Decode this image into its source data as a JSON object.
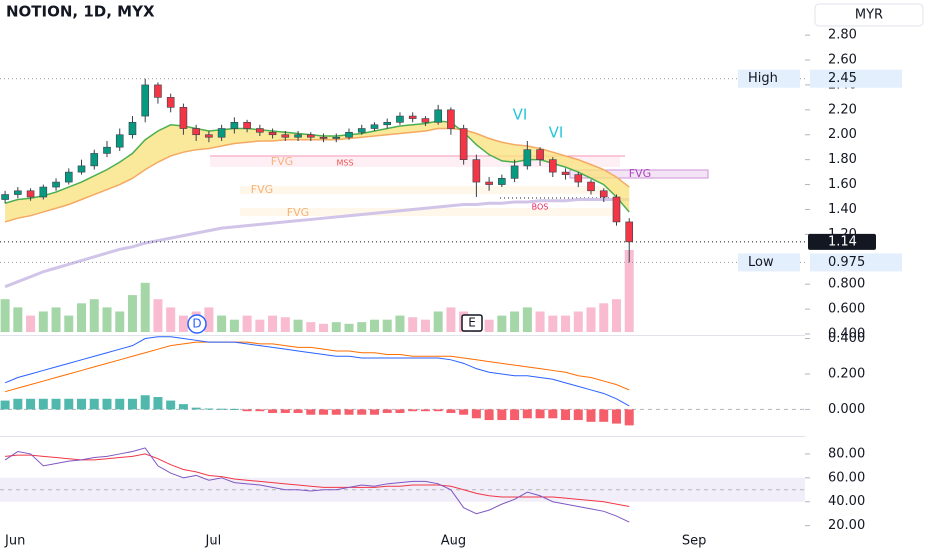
{
  "chart_data": [
    {
      "type": "candlestick",
      "title": "NOTION, 1D, MYX",
      "currency": "MYR",
      "xlim": [
        -0.4,
        62.8
      ],
      "ylim": [
        0.392,
        3.082
      ],
      "yticks": [
        {
          "value": 2.8,
          "label": "2.80"
        },
        {
          "value": 2.6,
          "label": "2.60"
        },
        {
          "value": 2.4,
          "label": "2.40"
        },
        {
          "value": 2.2,
          "label": "2.20"
        },
        {
          "value": 2,
          "label": "2.00"
        },
        {
          "value": 1.8,
          "label": "1.80"
        },
        {
          "value": 1.6,
          "label": "1.60"
        },
        {
          "value": 1.4,
          "label": "1.40"
        },
        {
          "value": 1.2,
          "label": "1.20"
        },
        {
          "value": 0.8,
          "label": "0.800"
        },
        {
          "value": 0.6,
          "label": "0.600"
        },
        {
          "value": 0.4,
          "label": "0.400"
        }
      ],
      "up_color": "#089981",
      "down_color": "#f23645",
      "open": [
        1.48,
        1.52,
        1.55,
        1.5,
        1.58,
        1.62,
        1.7,
        1.75,
        1.85,
        1.9,
        2.0,
        2.15,
        2.4,
        2.3,
        2.22,
        2.05,
        2.0,
        1.98,
        2.05,
        2.1,
        2.05,
        2.02,
        2.0,
        1.98,
        2.0,
        1.98,
        1.97,
        1.98,
        2.02,
        2.05,
        2.08,
        2.1,
        2.15,
        2.13,
        2.1,
        2.2,
        2.05,
        1.8,
        1.62,
        1.6,
        1.65,
        1.75,
        1.88,
        1.8,
        1.7,
        1.68,
        1.62,
        1.55,
        1.5,
        1.3
      ],
      "high": [
        1.55,
        1.58,
        1.57,
        1.6,
        1.65,
        1.73,
        1.8,
        1.88,
        1.95,
        2.05,
        2.15,
        2.45,
        2.42,
        2.33,
        2.25,
        2.08,
        2.03,
        2.08,
        2.14,
        2.12,
        2.08,
        2.05,
        2.03,
        2.03,
        2.02,
        2.01,
        2.01,
        2.05,
        2.08,
        2.1,
        2.13,
        2.18,
        2.18,
        2.15,
        2.24,
        2.22,
        2.08,
        1.84,
        1.66,
        1.68,
        1.8,
        1.95,
        1.9,
        1.82,
        1.73,
        1.7,
        1.64,
        1.57,
        1.52,
        1.33
      ],
      "low": [
        1.45,
        1.49,
        1.47,
        1.48,
        1.55,
        1.6,
        1.68,
        1.72,
        1.82,
        1.87,
        1.97,
        2.1,
        2.25,
        2.18,
        2.0,
        1.95,
        1.94,
        1.95,
        2.01,
        2.02,
        1.99,
        1.97,
        1.95,
        1.95,
        1.95,
        1.94,
        1.94,
        1.96,
        2.0,
        2.03,
        2.05,
        2.08,
        2.1,
        2.07,
        2.08,
        2.0,
        1.76,
        1.5,
        1.55,
        1.58,
        1.62,
        1.72,
        1.75,
        1.66,
        1.64,
        1.58,
        1.52,
        1.46,
        1.27,
        0.975
      ],
      "close": [
        1.52,
        1.55,
        1.5,
        1.58,
        1.62,
        1.7,
        1.75,
        1.85,
        1.9,
        2.0,
        2.1,
        2.4,
        2.3,
        2.22,
        2.05,
        2.0,
        1.98,
        2.05,
        2.1,
        2.05,
        2.02,
        2.0,
        1.98,
        2.0,
        1.98,
        1.97,
        1.98,
        2.02,
        2.05,
        2.08,
        2.1,
        2.15,
        2.13,
        2.1,
        2.2,
        2.05,
        1.8,
        1.62,
        1.6,
        1.65,
        1.75,
        1.88,
        1.8,
        1.7,
        1.68,
        1.62,
        1.55,
        1.5,
        1.3,
        1.14
      ],
      "volume_lim": [
        0,
        100
      ],
      "volume": [
        40,
        30,
        20,
        25,
        30,
        20,
        35,
        40,
        30,
        25,
        45,
        60,
        40,
        30,
        20,
        25,
        30,
        20,
        15,
        20,
        15,
        20,
        18,
        15,
        12,
        10,
        12,
        10,
        12,
        15,
        15,
        20,
        18,
        15,
        25,
        30,
        25,
        20,
        15,
        20,
        25,
        30,
        25,
        20,
        20,
        25,
        30,
        35,
        40,
        100
      ],
      "volume_up_color": "#a5d6a7",
      "volume_down_color": "#f8bbd0",
      "band_color": "#f9e27a",
      "overlays": [
        {
          "color": "#4caf50",
          "values": [
            1.45,
            1.48,
            1.49,
            1.51,
            1.54,
            1.58,
            1.62,
            1.67,
            1.72,
            1.78,
            1.85,
            1.96,
            2.03,
            2.08,
            2.07,
            2.05,
            2.03,
            2.04,
            2.05,
            2.05,
            2.04,
            2.03,
            2.02,
            2.01,
            2.0,
            1.99,
            1.99,
            2.0,
            2.01,
            2.03,
            2.05,
            2.07,
            2.08,
            2.09,
            2.11,
            2.1,
            2.02,
            1.92,
            1.84,
            1.79,
            1.78,
            1.8,
            1.8,
            1.77,
            1.74,
            1.7,
            1.65,
            1.6,
            1.5,
            1.38
          ]
        },
        {
          "color": "#f5a962",
          "values": [
            1.3,
            1.33,
            1.35,
            1.38,
            1.41,
            1.44,
            1.48,
            1.52,
            1.56,
            1.6,
            1.65,
            1.72,
            1.78,
            1.83,
            1.86,
            1.88,
            1.89,
            1.91,
            1.93,
            1.94,
            1.95,
            1.95,
            1.96,
            1.96,
            1.96,
            1.96,
            1.96,
            1.97,
            1.98,
            1.99,
            2.0,
            2.01,
            2.02,
            2.03,
            2.05,
            2.05,
            2.04,
            2.01,
            1.97,
            1.94,
            1.92,
            1.91,
            1.89,
            1.86,
            1.83,
            1.8,
            1.76,
            1.72,
            1.66,
            1.58
          ]
        },
        {
          "color": "#d1c4e9",
          "values": [
            0.78,
            0.82,
            0.86,
            0.9,
            0.93,
            0.96,
            0.99,
            1.02,
            1.05,
            1.08,
            1.1,
            1.13,
            1.15,
            1.17,
            1.19,
            1.21,
            1.23,
            1.25,
            1.26,
            1.27,
            1.28,
            1.29,
            1.3,
            1.31,
            1.32,
            1.33,
            1.34,
            1.35,
            1.36,
            1.37,
            1.38,
            1.39,
            1.4,
            1.41,
            1.42,
            1.43,
            1.44,
            1.44,
            1.45,
            1.45,
            1.46,
            1.46,
            1.47,
            1.47,
            1.47,
            1.48,
            1.48,
            1.48,
            1.48,
            1.48
          ]
        }
      ],
      "high_mark": {
        "label": "High",
        "value": 2.45
      },
      "low_mark": {
        "label": "Low",
        "value": 0.975
      },
      "last_price": 1.14,
      "annotations": [
        {
          "text": "VI",
          "color": "#26c6da"
        },
        {
          "text": "VI",
          "color": "#26c6da"
        },
        {
          "text": "FVG",
          "color": "#f5b27a"
        },
        {
          "text": "MSS",
          "color": "#ef5350"
        },
        {
          "text": "FVG",
          "color": "#f5b27a"
        },
        {
          "text": "FVG",
          "color": "#f5b27a"
        },
        {
          "text": "BOS",
          "color": "#e91e63"
        },
        {
          "text": "FVG",
          "color": "#ab47bc"
        },
        {
          "text": "D",
          "color": "#2962ff"
        },
        {
          "text": "E",
          "color": "#131722"
        }
      ]
    },
    {
      "type": "macd",
      "xlim": [
        -0.4,
        62.8
      ],
      "ylim": [
        -0.15,
        0.42
      ],
      "yticks": [
        {
          "value": 0.4,
          "label": "0.400"
        },
        {
          "value": 0.2,
          "label": "0.200"
        },
        {
          "value": 0,
          "label": "0.000"
        }
      ],
      "macd": {
        "color": "#2962ff",
        "values": [
          0.15,
          0.18,
          0.2,
          0.22,
          0.24,
          0.26,
          0.28,
          0.3,
          0.32,
          0.34,
          0.36,
          0.4,
          0.41,
          0.41,
          0.4,
          0.39,
          0.38,
          0.38,
          0.38,
          0.37,
          0.36,
          0.35,
          0.34,
          0.33,
          0.32,
          0.31,
          0.3,
          0.3,
          0.29,
          0.29,
          0.29,
          0.29,
          0.29,
          0.29,
          0.29,
          0.28,
          0.26,
          0.23,
          0.21,
          0.2,
          0.19,
          0.19,
          0.18,
          0.17,
          0.15,
          0.13,
          0.11,
          0.09,
          0.06,
          0.02
        ]
      },
      "signal": {
        "color": "#ff6d00",
        "values": [
          0.1,
          0.12,
          0.14,
          0.16,
          0.18,
          0.2,
          0.22,
          0.24,
          0.26,
          0.28,
          0.3,
          0.32,
          0.34,
          0.36,
          0.37,
          0.38,
          0.38,
          0.38,
          0.38,
          0.38,
          0.37,
          0.37,
          0.36,
          0.35,
          0.35,
          0.34,
          0.33,
          0.33,
          0.32,
          0.32,
          0.31,
          0.31,
          0.3,
          0.3,
          0.3,
          0.3,
          0.29,
          0.28,
          0.27,
          0.26,
          0.25,
          0.24,
          0.23,
          0.22,
          0.21,
          0.19,
          0.18,
          0.16,
          0.14,
          0.11
        ]
      },
      "histogram": {
        "up_color": "#26a69a",
        "down_color": "#f23645",
        "values": [
          0.05,
          0.06,
          0.06,
          0.06,
          0.06,
          0.06,
          0.06,
          0.06,
          0.06,
          0.06,
          0.06,
          0.08,
          0.07,
          0.05,
          0.03,
          0.01,
          0.005,
          0.004,
          0.003,
          -0.01,
          -0.01,
          -0.02,
          -0.02,
          -0.02,
          -0.03,
          -0.03,
          -0.03,
          -0.03,
          -0.03,
          -0.03,
          -0.02,
          -0.02,
          -0.01,
          -0.01,
          -0.01,
          -0.02,
          -0.03,
          -0.05,
          -0.06,
          -0.06,
          -0.06,
          -0.05,
          -0.05,
          -0.05,
          -0.06,
          -0.06,
          -0.07,
          -0.07,
          -0.08,
          -0.09
        ]
      }
    },
    {
      "type": "rsi",
      "xlim": [
        -0.4,
        62.8
      ],
      "ylim": [
        8,
        95
      ],
      "yticks": [
        {
          "value": 80,
          "label": "80.00"
        },
        {
          "value": 60,
          "label": "60.00"
        },
        {
          "value": 40,
          "label": "40.00"
        },
        {
          "value": 20,
          "label": "20.00"
        }
      ],
      "band": [
        40,
        60
      ],
      "midline": 50,
      "rsi": {
        "color": "#7e57c2",
        "values": [
          75,
          82,
          80,
          70,
          72,
          74,
          75,
          77,
          78,
          80,
          82,
          85,
          70,
          64,
          60,
          62,
          58,
          60,
          56,
          55,
          54,
          52,
          50,
          50,
          49,
          50,
          50,
          52,
          54,
          53,
          55,
          56,
          57,
          57,
          55,
          50,
          35,
          30,
          33,
          38,
          42,
          48,
          45,
          40,
          38,
          36,
          34,
          32,
          28,
          23
        ]
      },
      "rsi_ma": {
        "color": "#f23645",
        "values": [
          78,
          79,
          79,
          78,
          77,
          76,
          75,
          75,
          76,
          77,
          78,
          80,
          76,
          71,
          67,
          65,
          62,
          61,
          59,
          58,
          57,
          56,
          55,
          54,
          53,
          52,
          52,
          52,
          52,
          52,
          53,
          53,
          54,
          54,
          54,
          53,
          50,
          47,
          45,
          44,
          44,
          44,
          44,
          44,
          43,
          42,
          41,
          40,
          38,
          36
        ]
      },
      "xticks": [
        {
          "value": 0.79,
          "label": "Jun"
        },
        {
          "value": 16.35,
          "label": "Jul"
        },
        {
          "value": 35.2,
          "label": "Aug"
        },
        {
          "value": 54.1,
          "label": "Sep"
        }
      ]
    }
  ]
}
